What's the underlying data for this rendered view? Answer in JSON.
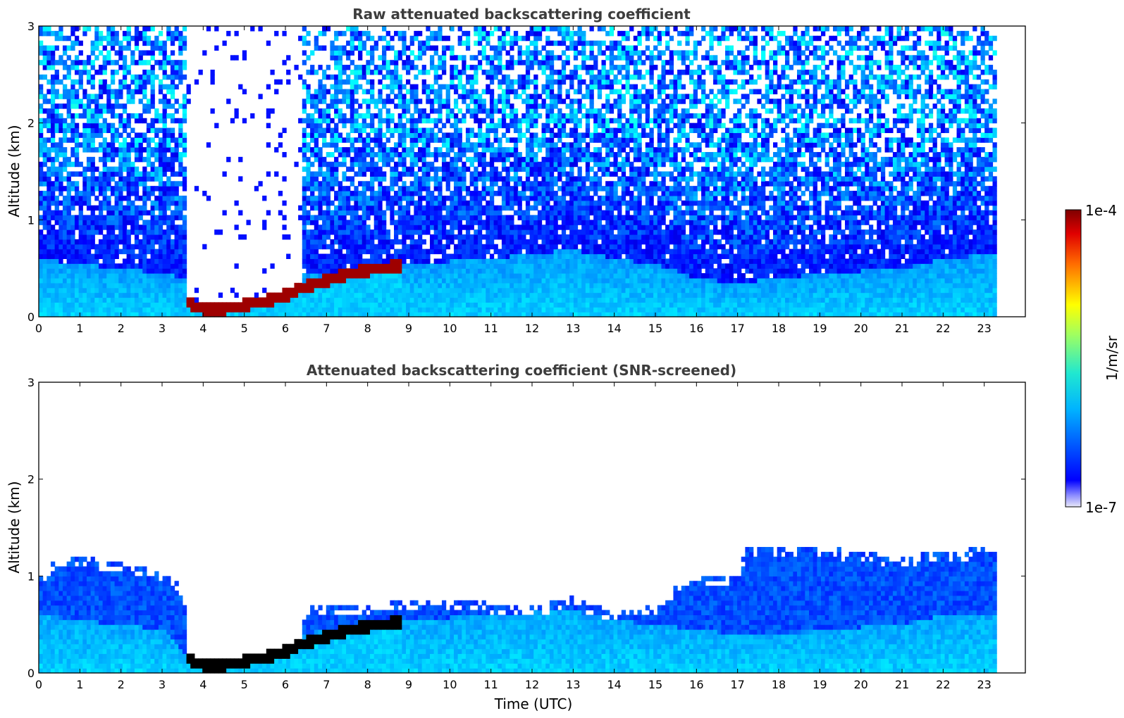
{
  "chart_data": [
    {
      "type": "heatmap",
      "title": "Raw attenuated backscattering coefficient",
      "xlabel": "",
      "ylabel": "Altitude (km)",
      "xlim": [
        0,
        24
      ],
      "ylim": [
        0,
        3
      ],
      "x_ticks": [
        "0",
        "1",
        "2",
        "3",
        "4",
        "5",
        "6",
        "7",
        "8",
        "9",
        "10",
        "11",
        "12",
        "13",
        "14",
        "15",
        "16",
        "17",
        "18",
        "19",
        "20",
        "21",
        "22",
        "23"
      ],
      "y_ticks": [
        "0",
        "1",
        "2",
        "3"
      ],
      "data_end_time": 23.3,
      "screened": false,
      "features": {
        "boundary_layer_top_km": [
          [
            0,
            0.6
          ],
          [
            1,
            0.55
          ],
          [
            2,
            0.5
          ],
          [
            3,
            0.45
          ],
          [
            3.6,
            0.4
          ],
          [
            7,
            0.45
          ],
          [
            9,
            0.55
          ],
          [
            11,
            0.6
          ],
          [
            13,
            0.7
          ],
          [
            14,
            0.6
          ],
          [
            15,
            0.55
          ],
          [
            16,
            0.4
          ],
          [
            17,
            0.35
          ],
          [
            18,
            0.4
          ],
          [
            19,
            0.45
          ],
          [
            21,
            0.5
          ],
          [
            22,
            0.6
          ],
          [
            23.3,
            0.65
          ]
        ],
        "cloud_base_km": [
          [
            3.6,
            0.15
          ],
          [
            4,
            0.08
          ],
          [
            4.5,
            0.08
          ],
          [
            5,
            0.12
          ],
          [
            5.5,
            0.16
          ],
          [
            6,
            0.22
          ],
          [
            6.4,
            0.3
          ],
          [
            7,
            0.38
          ],
          [
            7.6,
            0.45
          ],
          [
            8.2,
            0.5
          ],
          [
            8.8,
            0.53
          ]
        ],
        "signal_blocked_time_range": [
          3.6,
          6.4
        ]
      }
    },
    {
      "type": "heatmap",
      "title": "Attenuated backscattering coefficient (SNR-screened)",
      "xlabel": "Time (UTC)",
      "ylabel": "Altitude (km)",
      "xlim": [
        0,
        24
      ],
      "ylim": [
        0,
        3
      ],
      "x_ticks": [
        "0",
        "1",
        "2",
        "3",
        "4",
        "5",
        "6",
        "7",
        "8",
        "9",
        "10",
        "11",
        "12",
        "13",
        "14",
        "15",
        "16",
        "17",
        "18",
        "19",
        "20",
        "21",
        "22",
        "23"
      ],
      "y_ticks": [
        "0",
        "1",
        "2",
        "3"
      ],
      "data_end_time": 23.3,
      "screened": true,
      "features": {
        "valid_signal_top_km": [
          [
            0,
            1.0
          ],
          [
            0.5,
            1.2
          ],
          [
            1,
            1.2
          ],
          [
            2,
            1.15
          ],
          [
            3,
            1.05
          ],
          [
            3.5,
            0.9
          ],
          [
            3.65,
            0.2
          ],
          [
            6.1,
            0.3
          ],
          [
            6.3,
            0.65
          ],
          [
            7,
            0.7
          ],
          [
            8,
            0.7
          ],
          [
            9,
            0.75
          ],
          [
            10,
            0.75
          ],
          [
            11,
            0.72
          ],
          [
            12,
            0.68
          ],
          [
            13,
            0.78
          ],
          [
            14,
            0.62
          ],
          [
            15,
            0.7
          ],
          [
            15.5,
            0.9
          ],
          [
            16,
            1.0
          ],
          [
            17,
            1.0
          ],
          [
            17.2,
            1.3
          ],
          [
            18,
            1.3
          ],
          [
            19,
            1.3
          ],
          [
            20,
            1.25
          ],
          [
            21,
            1.2
          ],
          [
            22,
            1.25
          ],
          [
            23.3,
            1.3
          ]
        ],
        "boundary_layer_top_km": [
          [
            0,
            0.6
          ],
          [
            1,
            0.55
          ],
          [
            2,
            0.5
          ],
          [
            3,
            0.45
          ],
          [
            3.6,
            0.2
          ],
          [
            7,
            0.45
          ],
          [
            9,
            0.55
          ],
          [
            11,
            0.6
          ],
          [
            13,
            0.65
          ],
          [
            14,
            0.55
          ],
          [
            15,
            0.5
          ],
          [
            16,
            0.45
          ],
          [
            17,
            0.4
          ],
          [
            18,
            0.4
          ],
          [
            19,
            0.45
          ],
          [
            21,
            0.5
          ],
          [
            22,
            0.6
          ],
          [
            23.3,
            0.6
          ]
        ],
        "cloud_base_km": [
          [
            3.6,
            0.15
          ],
          [
            4,
            0.08
          ],
          [
            4.5,
            0.08
          ],
          [
            5,
            0.12
          ],
          [
            5.5,
            0.16
          ],
          [
            6,
            0.22
          ],
          [
            6.4,
            0.3
          ],
          [
            7,
            0.38
          ],
          [
            7.6,
            0.45
          ],
          [
            8.2,
            0.5
          ],
          [
            8.8,
            0.53
          ]
        ]
      }
    }
  ],
  "colorbar": {
    "max_label": "1e-4",
    "min_label": "1e-7",
    "unit_label": "1/m/sr",
    "colormap": "jet",
    "log_range": [
      -7,
      -4
    ]
  }
}
